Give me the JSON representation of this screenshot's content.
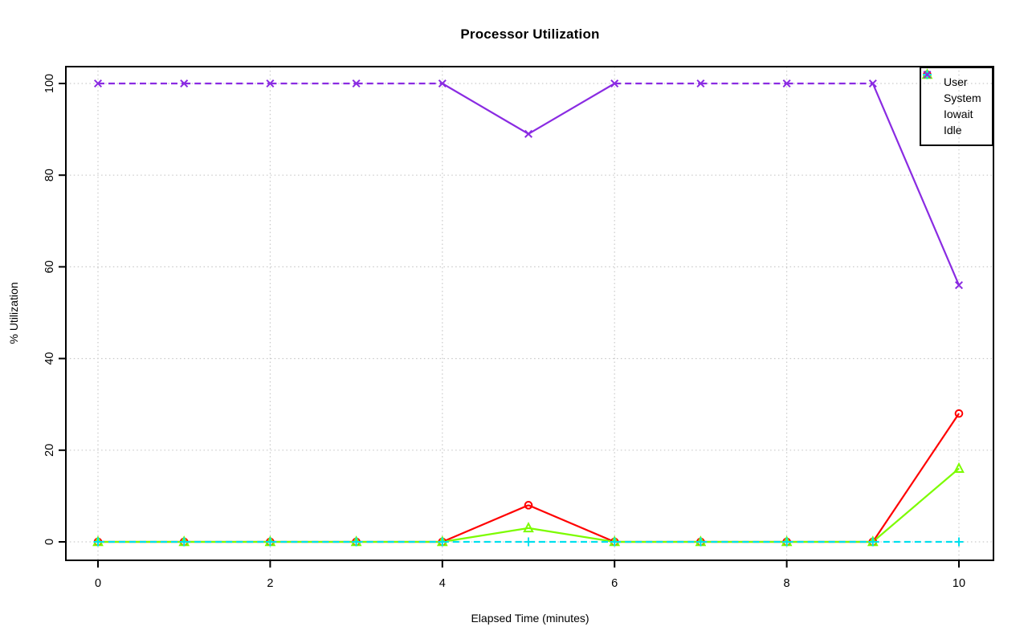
{
  "figure": {
    "title": "Processor Utilization",
    "xlabel": "Elapsed Time (minutes)",
    "ylabel": "% Utilization"
  },
  "chart_data": {
    "type": "line",
    "title": "Processor Utilization",
    "xlabel": "Elapsed Time (minutes)",
    "ylabel": "% Utilization",
    "x": [
      0,
      1,
      2,
      3,
      4,
      5,
      6,
      7,
      8,
      9,
      10
    ],
    "x_ticks": [
      0,
      2,
      4,
      6,
      8,
      10
    ],
    "y_ticks": [
      0,
      20,
      40,
      60,
      80,
      100
    ],
    "xlim": [
      0,
      10
    ],
    "ylim": [
      0,
      100
    ],
    "grid": "dotted gray gridlines at every axis tick",
    "legend_position": "top-right",
    "plot_background": "#ffffff",
    "grid_color": "#c9c9c9",
    "series": [
      {
        "name": "User",
        "color": "#ff0000",
        "marker": "circle",
        "dashed_when_flat": false,
        "values": [
          0,
          0,
          0,
          0,
          0,
          8,
          0,
          0,
          0,
          0,
          28
        ]
      },
      {
        "name": "System",
        "color": "#7cfc00",
        "marker": "triangle",
        "dashed_when_flat": false,
        "values": [
          0,
          0,
          0,
          0,
          0,
          3,
          0,
          0,
          0,
          0,
          16
        ]
      },
      {
        "name": "Iowait",
        "color": "#00e0ee",
        "marker": "plus",
        "dashed_when_flat": true,
        "values": [
          0,
          0,
          0,
          0,
          0,
          0,
          0,
          0,
          0,
          0,
          0
        ]
      },
      {
        "name": "Idle",
        "color": "#8a2be2",
        "marker": "x",
        "dashed_when_flat": true,
        "values": [
          100,
          100,
          100,
          100,
          100,
          89,
          100,
          100,
          100,
          100,
          56
        ]
      }
    ]
  }
}
